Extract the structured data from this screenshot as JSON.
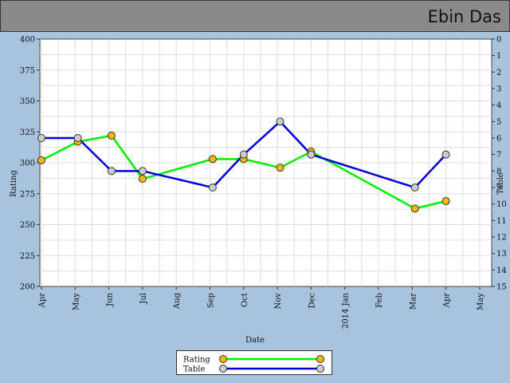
{
  "header": {
    "title": "Ebin Das"
  },
  "chart_data": {
    "type": "line",
    "x_categories": [
      "Apr",
      "May",
      "Jun",
      "Jul",
      "Aug",
      "Sep",
      "Oct",
      "Nov",
      "Dec",
      "2014 Jan",
      "Feb",
      "Mar",
      "Apr",
      "May"
    ],
    "xlabel": "Date",
    "ylabel_left": "Rating",
    "ylabel_right": "Table",
    "ylim_left": [
      200,
      400
    ],
    "yticks_left": [
      200,
      225,
      250,
      275,
      300,
      325,
      350,
      375,
      400
    ],
    "ylim_right": [
      15,
      0
    ],
    "yticks_right": [
      0,
      1,
      2,
      3,
      4,
      5,
      6,
      7,
      8,
      9,
      10,
      11,
      12,
      13,
      14,
      15
    ],
    "grid": true,
    "legend_position": "bottom-center",
    "series": [
      {
        "name": "Rating",
        "axis": "left",
        "line_color": "#00ee00",
        "marker_color": "#f5b800",
        "points": [
          {
            "x": 0,
            "y": 302
          },
          {
            "x": 1.08,
            "y": 317
          },
          {
            "x": 2.08,
            "y": 322
          },
          {
            "x": 3.0,
            "y": 287
          },
          {
            "x": 5.08,
            "y": 303
          },
          {
            "x": 6.0,
            "y": 303
          },
          {
            "x": 7.08,
            "y": 296
          },
          {
            "x": 8.0,
            "y": 309
          },
          {
            "x": 11.08,
            "y": 263
          },
          {
            "x": 12.0,
            "y": 269
          }
        ]
      },
      {
        "name": "Table",
        "axis": "right",
        "line_color": "#0000dd",
        "marker_color": "#cccccc",
        "points": [
          {
            "x": 0,
            "y": 6
          },
          {
            "x": 1.08,
            "y": 6
          },
          {
            "x": 2.08,
            "y": 8
          },
          {
            "x": 3.0,
            "y": 8
          },
          {
            "x": 5.08,
            "y": 9
          },
          {
            "x": 6.0,
            "y": 7
          },
          {
            "x": 7.08,
            "y": 5
          },
          {
            "x": 8.0,
            "y": 7
          },
          {
            "x": 11.08,
            "y": 9
          },
          {
            "x": 12.0,
            "y": 7
          }
        ]
      }
    ]
  }
}
